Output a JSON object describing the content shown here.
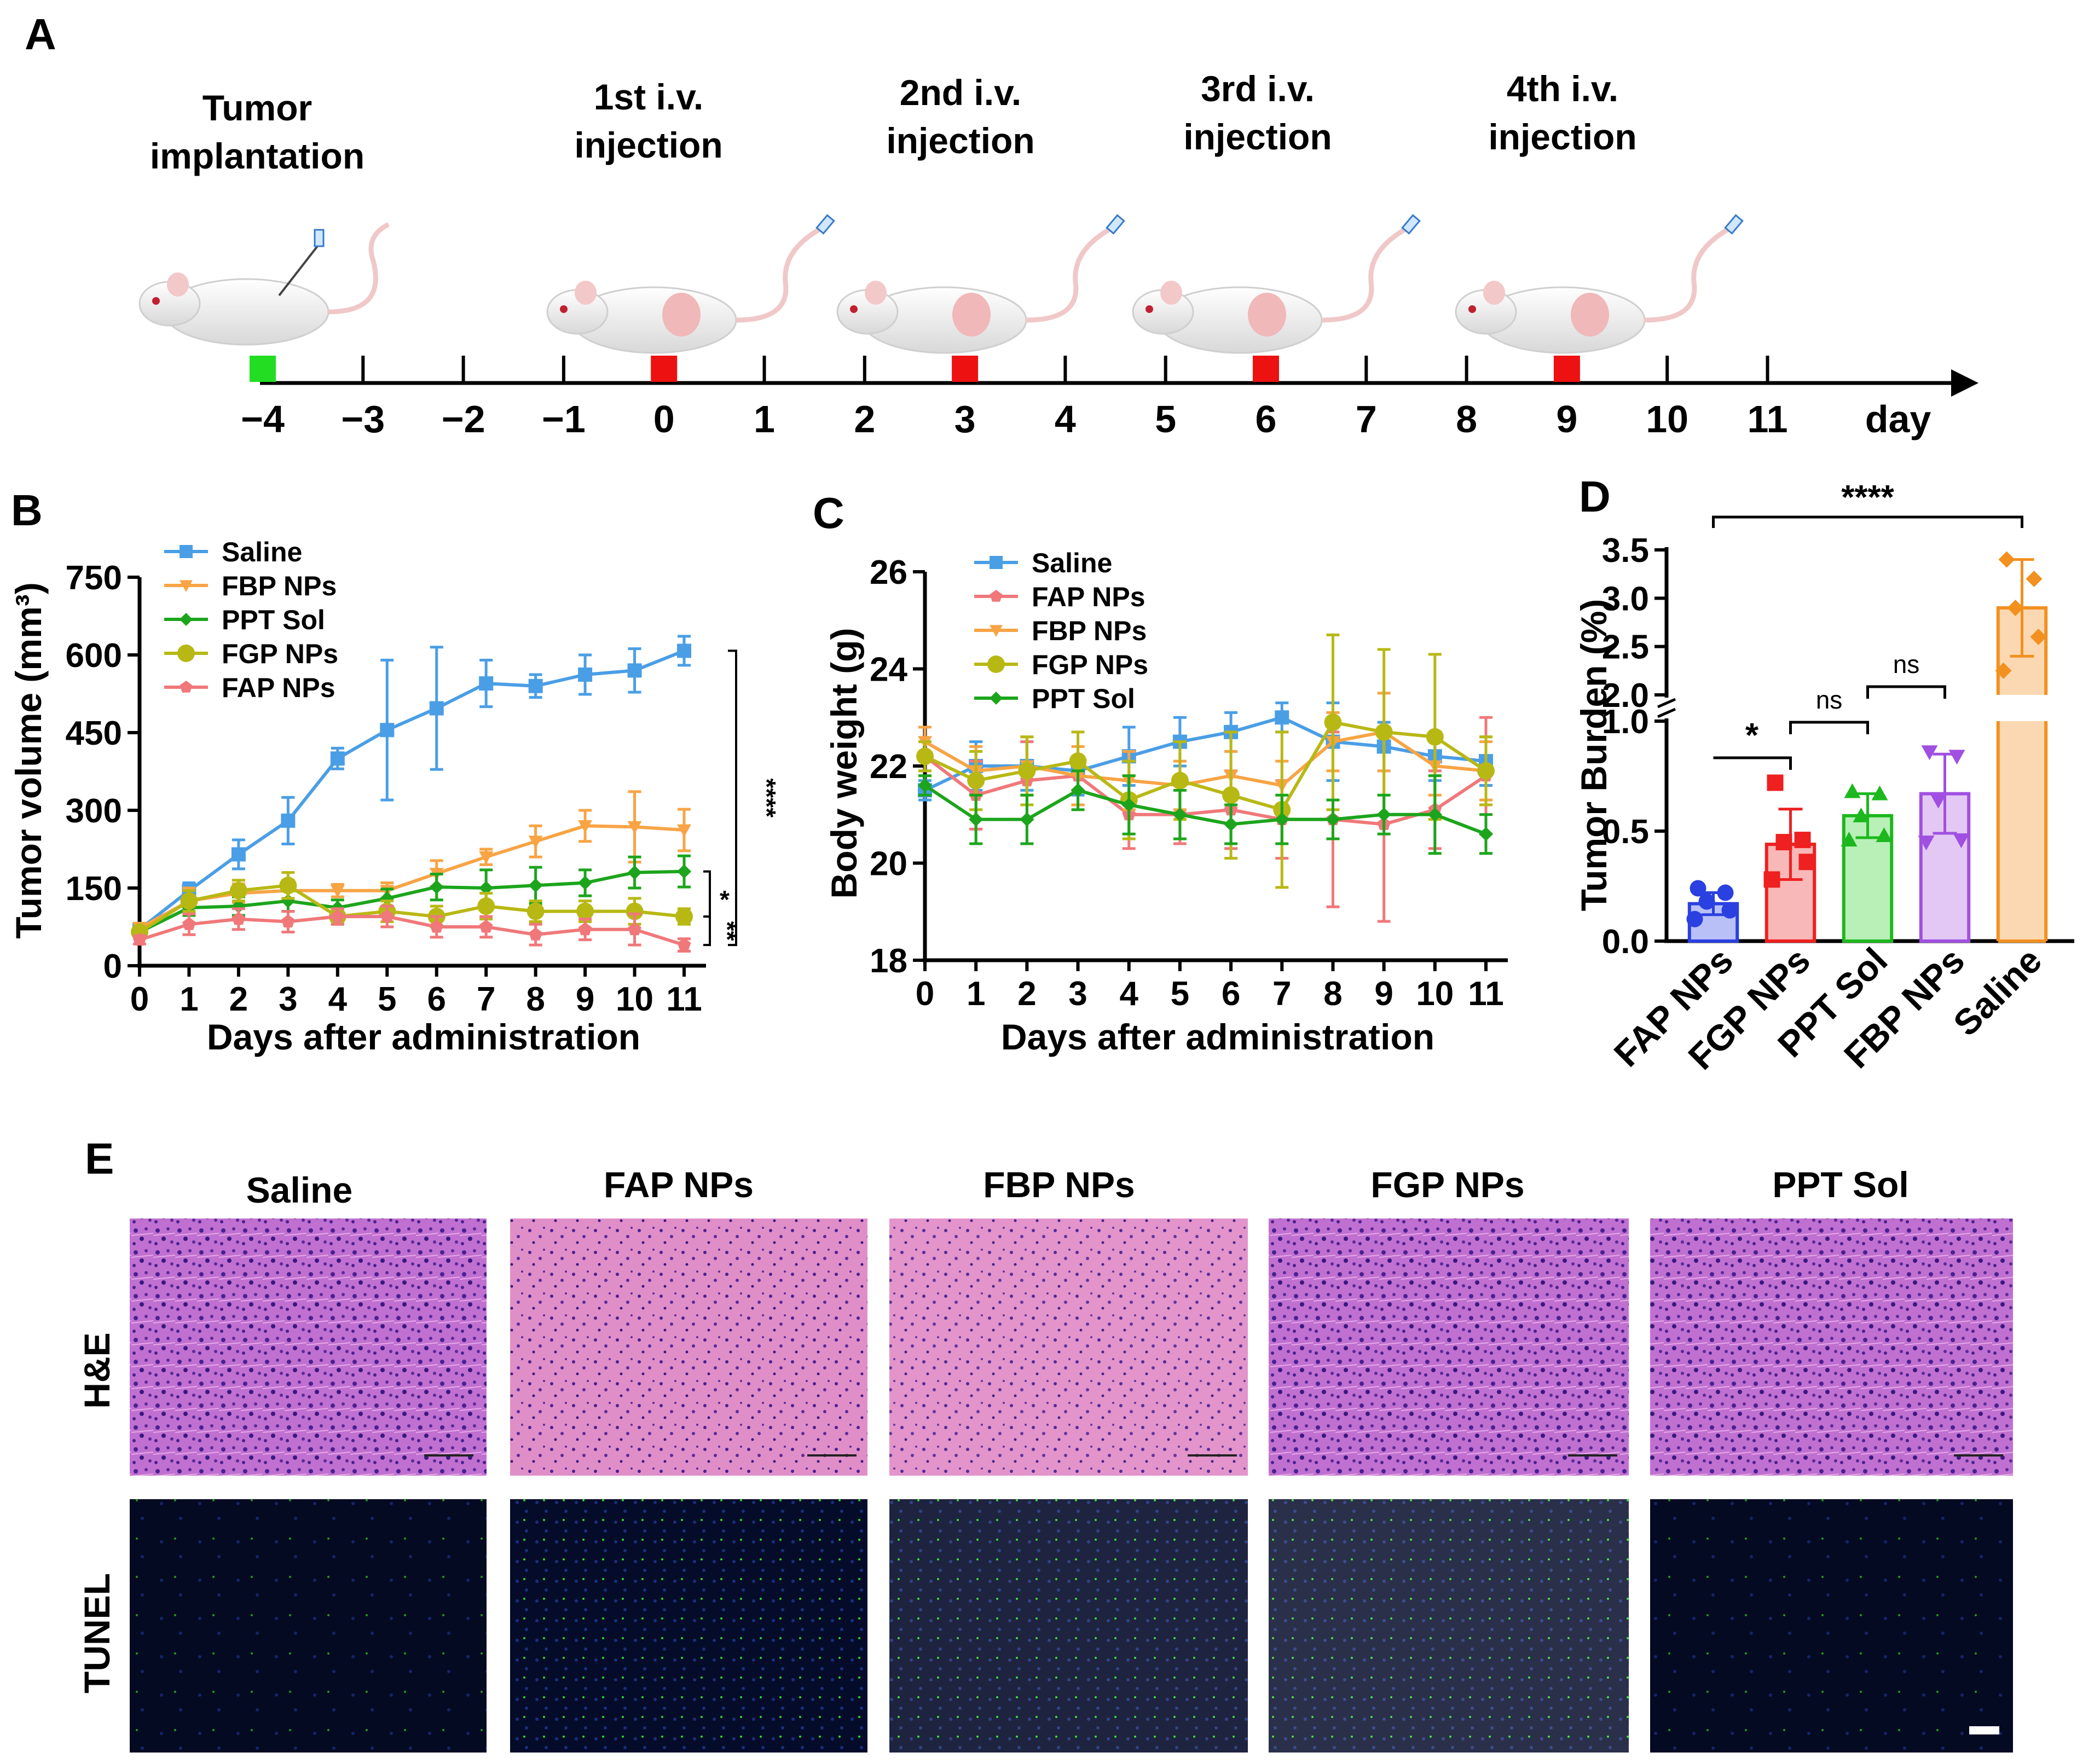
{
  "panels": {
    "A": {
      "label": "A",
      "events": [
        {
          "lines": [
            "Tumor",
            "implantation"
          ],
          "day": -4
        },
        {
          "lines": [
            "1st i.v.",
            "injection"
          ],
          "day": 0
        },
        {
          "lines": [
            "2nd i.v.",
            "injection"
          ],
          "day": 3
        },
        {
          "lines": [
            "3rd i.v.",
            "injection"
          ],
          "day": 6
        },
        {
          "lines": [
            "4th i.v.",
            "injection"
          ],
          "day": 9
        }
      ],
      "days": [
        "−4",
        "−3",
        "−2",
        "−1",
        "0",
        "1",
        "2",
        "3",
        "4",
        "5",
        "6",
        "7",
        "8",
        "9",
        "10",
        "11"
      ],
      "day_unit": "day",
      "implant_color": "#22dd22",
      "injection_color": "#ee1111"
    },
    "B": {
      "label": "B"
    },
    "C": {
      "label": "C"
    },
    "D": {
      "label": "D"
    },
    "E": {
      "label": "E",
      "columns": [
        "Saline",
        "FAP NPs",
        "FBP NPs",
        "FGP NPs",
        "PPT Sol"
      ],
      "rows": [
        "H&E",
        "TUNEL"
      ],
      "he_color": "#b060c8",
      "tunel_color": "#0a1a3a"
    }
  },
  "chart_data": [
    {
      "id": "B",
      "type": "line",
      "xlabel": "Days after administration",
      "ylabel": "Tumor volume (mm³)",
      "x": [
        0,
        1,
        2,
        3,
        4,
        5,
        6,
        7,
        8,
        9,
        10,
        11
      ],
      "xlim": [
        0,
        11
      ],
      "ylim": [
        0,
        750
      ],
      "yticks": [
        0,
        150,
        300,
        450,
        600,
        750
      ],
      "legend": "top-left",
      "series": [
        {
          "name": "Saline",
          "color": "#4a9ee6",
          "marker": "square",
          "values": [
            70,
            145,
            215,
            280,
            400,
            455,
            497,
            545,
            540,
            562,
            570,
            608
          ],
          "errors": [
            12,
            15,
            28,
            45,
            20,
            135,
            118,
            45,
            22,
            38,
            42,
            28
          ]
        },
        {
          "name": "FBP NPs",
          "color": "#f8a445",
          "marker": "tri-down",
          "values": [
            72,
            125,
            140,
            145,
            145,
            145,
            178,
            210,
            240,
            270,
            268,
            262
          ],
          "errors": [
            10,
            25,
            18,
            20,
            12,
            15,
            25,
            15,
            30,
            30,
            68,
            40
          ]
        },
        {
          "name": "PPT Sol",
          "color": "#1ca51c",
          "marker": "diamond",
          "values": [
            65,
            112,
            115,
            125,
            112,
            130,
            152,
            150,
            155,
            160,
            180,
            182
          ],
          "errors": [
            8,
            15,
            18,
            20,
            15,
            18,
            25,
            35,
            35,
            25,
            30,
            30
          ]
        },
        {
          "name": "FGP NPs",
          "color": "#b8b815",
          "marker": "circle",
          "values": [
            65,
            125,
            145,
            155,
            95,
            105,
            95,
            115,
            105,
            105,
            105,
            95
          ],
          "errors": [
            8,
            20,
            20,
            25,
            15,
            20,
            20,
            25,
            20,
            20,
            25,
            15
          ]
        },
        {
          "name": "FAP NPs",
          "color": "#f0787a",
          "marker": "pentagon",
          "values": [
            50,
            80,
            90,
            85,
            95,
            95,
            75,
            75,
            60,
            70,
            70,
            40
          ],
          "errors": [
            8,
            20,
            20,
            20,
            15,
            20,
            20,
            20,
            20,
            20,
            30,
            12
          ]
        }
      ],
      "annotations": [
        "****",
        "*",
        "**"
      ]
    },
    {
      "id": "C",
      "type": "line",
      "xlabel": "Days after administration",
      "ylabel": "Body weight (g)",
      "x": [
        0,
        1,
        2,
        3,
        4,
        5,
        6,
        7,
        8,
        9,
        10,
        11
      ],
      "xlim": [
        0,
        11
      ],
      "ylim": [
        18,
        26
      ],
      "yticks": [
        18,
        20,
        22,
        24,
        26
      ],
      "legend": "top-center",
      "series": [
        {
          "name": "Saline",
          "color": "#4a9ee6",
          "marker": "square",
          "values": [
            21.5,
            22.0,
            22.0,
            21.9,
            22.2,
            22.5,
            22.7,
            23.0,
            22.5,
            22.4,
            22.2,
            22.1
          ],
          "errors": [
            0.2,
            0.5,
            0.5,
            0.5,
            0.6,
            0.5,
            0.4,
            0.3,
            0.8,
            0.5,
            0.5,
            0.5
          ]
        },
        {
          "name": "FAP NPs",
          "color": "#f0787a",
          "marker": "pentagon",
          "values": [
            22.2,
            21.4,
            21.7,
            21.8,
            21.0,
            21.0,
            21.1,
            20.9,
            20.9,
            20.8,
            21.1,
            21.8
          ],
          "errors": [
            0.3,
            0.7,
            0.8,
            0.6,
            0.7,
            0.6,
            0.8,
            0.8,
            1.8,
            2.0,
            0.8,
            1.2
          ]
        },
        {
          "name": "FBP NPs",
          "color": "#f8a445",
          "marker": "tri-down",
          "values": [
            22.5,
            21.9,
            22.0,
            21.8,
            21.7,
            21.6,
            21.8,
            21.6,
            22.5,
            22.7,
            22.0,
            21.9
          ],
          "errors": [
            0.3,
            0.5,
            0.6,
            0.6,
            0.6,
            0.5,
            0.5,
            0.5,
            0.6,
            0.8,
            0.6,
            0.6
          ]
        },
        {
          "name": "FGP NPs",
          "color": "#b8b815",
          "marker": "circle",
          "values": [
            22.2,
            21.7,
            21.9,
            22.1,
            21.3,
            21.7,
            21.4,
            21.1,
            22.9,
            22.7,
            22.6,
            21.9
          ],
          "errors": [
            0.3,
            0.6,
            0.7,
            0.6,
            0.8,
            0.8,
            1.3,
            1.6,
            1.8,
            1.7,
            1.7,
            0.7
          ]
        },
        {
          "name": "PPT Sol",
          "color": "#1ca51c",
          "marker": "diamond",
          "values": [
            21.6,
            20.9,
            20.9,
            21.5,
            21.2,
            21.0,
            20.8,
            20.9,
            20.9,
            21.0,
            21.0,
            20.6
          ],
          "errors": [
            0.2,
            0.5,
            0.5,
            0.4,
            0.6,
            0.5,
            0.4,
            0.5,
            0.4,
            0.4,
            0.8,
            0.4
          ]
        }
      ]
    },
    {
      "id": "D",
      "type": "bar",
      "ylabel": "Tumor Burden (%)",
      "categories": [
        "FAP NPs",
        "FGP NPs",
        "PPT Sol",
        "FBP NPs",
        "Saline"
      ],
      "values": [
        0.17,
        0.44,
        0.57,
        0.67,
        2.9
      ],
      "errors": [
        0.05,
        0.16,
        0.1,
        0.18,
        0.5
      ],
      "colors": [
        "#2a40e0",
        "#ee2020",
        "#1db81d",
        "#a050e0",
        "#f29020"
      ],
      "fills": [
        "#b9c0f8",
        "#f8b8b8",
        "#b8f0b8",
        "#e4c8f4",
        "#fcd8b2"
      ],
      "points": [
        [
          0.1,
          0.14,
          0.18,
          0.22,
          0.24
        ],
        [
          0.28,
          0.36,
          0.45,
          0.46,
          0.72
        ],
        [
          0.46,
          0.48,
          0.57,
          0.67,
          0.68
        ],
        [
          0.45,
          0.46,
          0.64,
          0.84,
          0.86
        ],
        [
          2.25,
          2.6,
          2.9,
          3.2,
          3.4
        ]
      ],
      "axis_lower": {
        "range": [
          0.0,
          1.0
        ],
        "ticks": [
          "0.0",
          "0.5",
          "1.0"
        ]
      },
      "axis_upper": {
        "range": [
          2.0,
          3.5
        ],
        "ticks": [
          "2.0",
          "2.5",
          "3.0",
          "3.5"
        ]
      },
      "annotations": {
        "top": "****",
        "first": "*",
        "second": "ns",
        "third": "ns"
      }
    }
  ]
}
